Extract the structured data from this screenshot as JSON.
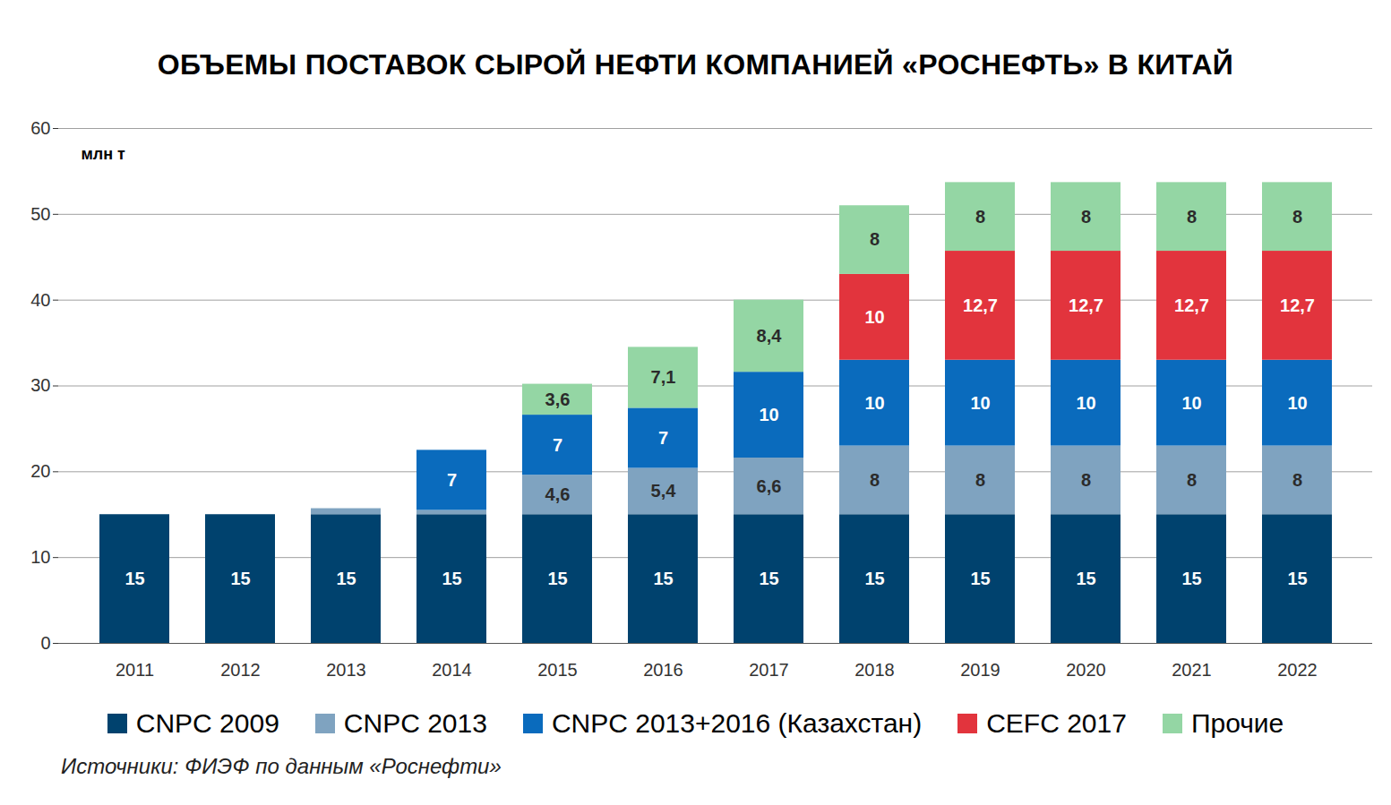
{
  "chart_data": {
    "type": "bar",
    "title": "ОБЪЕМЫ ПОСТАВОК СЫРОЙ НЕФТИ КОМПАНИЕЙ «РОСНЕФТЬ» В КИТАЙ",
    "y_label": "млн т",
    "source": "Источники: ФИЭФ по данным «Роснефти»",
    "stacked": true,
    "data_labels": true,
    "grid": true,
    "legend": "bottom",
    "categories": [
      "2011",
      "2012",
      "2013",
      "2014",
      "2015",
      "2016",
      "2017",
      "2018",
      "2019",
      "2020",
      "2021",
      "2022"
    ],
    "ylim": [
      0,
      60
    ],
    "yticks": [
      0,
      10,
      20,
      30,
      40,
      50,
      60
    ],
    "series": [
      {
        "name": "CNPC 2009",
        "color": "#00426e",
        "values": [
          15,
          15,
          15,
          15,
          15,
          15,
          15,
          15,
          15,
          15,
          15,
          15
        ],
        "value_labels": [
          "15",
          "15",
          "15",
          "15",
          "15",
          "15",
          "15",
          "15",
          "15",
          "15",
          "15",
          "15"
        ]
      },
      {
        "name": "CNPC 2013",
        "color": "#7fa3c0",
        "values": [
          null,
          null,
          0.7,
          0.5,
          4.6,
          5.4,
          6.6,
          8,
          8,
          8,
          8,
          8
        ],
        "value_labels": [
          null,
          null,
          null,
          null,
          "4,6",
          "5,4",
          "6,6",
          "8",
          "8",
          "8",
          "8",
          "8"
        ]
      },
      {
        "name": "CNPC 2013+2016 (Казахстан)",
        "color": "#0a6bbd",
        "values": [
          null,
          null,
          null,
          7,
          7,
          7,
          10,
          10,
          10,
          10,
          10,
          10
        ],
        "value_labels": [
          null,
          null,
          null,
          "7",
          "7",
          "7",
          "10",
          "10",
          "10",
          "10",
          "10",
          "10"
        ]
      },
      {
        "name": "CEFC 2017",
        "color": "#e2343d",
        "values": [
          null,
          null,
          null,
          null,
          null,
          null,
          null,
          10,
          12.7,
          12.7,
          12.7,
          12.7
        ],
        "value_labels": [
          null,
          null,
          null,
          null,
          null,
          null,
          null,
          "10",
          "12,7",
          "12,7",
          "12,7",
          "12,7"
        ]
      },
      {
        "name": "Прочие",
        "color": "#94d6a4",
        "values": [
          null,
          null,
          null,
          null,
          3.6,
          7.1,
          8.4,
          8,
          8,
          8,
          8,
          8
        ],
        "value_labels": [
          null,
          null,
          null,
          null,
          "3,6",
          "7,1",
          "8,4",
          "8",
          "8",
          "8",
          "8",
          "8"
        ]
      }
    ]
  }
}
